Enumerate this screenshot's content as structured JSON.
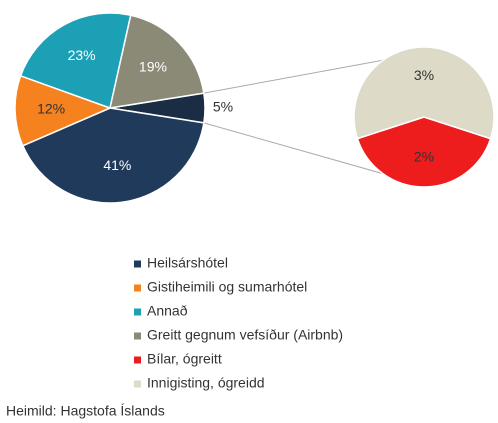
{
  "chart_data": {
    "type": "pie-of-pie",
    "categories": [
      "Heilsárshótel",
      "Gistiheimili og sumarhótel",
      "Annað",
      "Greitt gegnum vefsíður (Airbnb)",
      "Bílar, ógreitt",
      "Innigisting, ógreidd"
    ],
    "values": [
      41,
      12,
      23,
      19,
      2,
      3
    ],
    "value_labels": [
      "41%",
      "12%",
      "23%",
      "19%",
      "2%",
      "3%"
    ],
    "colors": [
      "#203a5c",
      "#f5821f",
      "#1ca0b5",
      "#8b8a77",
      "#ee1d1d",
      "#dddac8"
    ],
    "other_slice": {
      "value": 5,
      "label": "5%",
      "color": "#1b2d45"
    },
    "source": "Heimild: Hagstofa Íslands"
  }
}
